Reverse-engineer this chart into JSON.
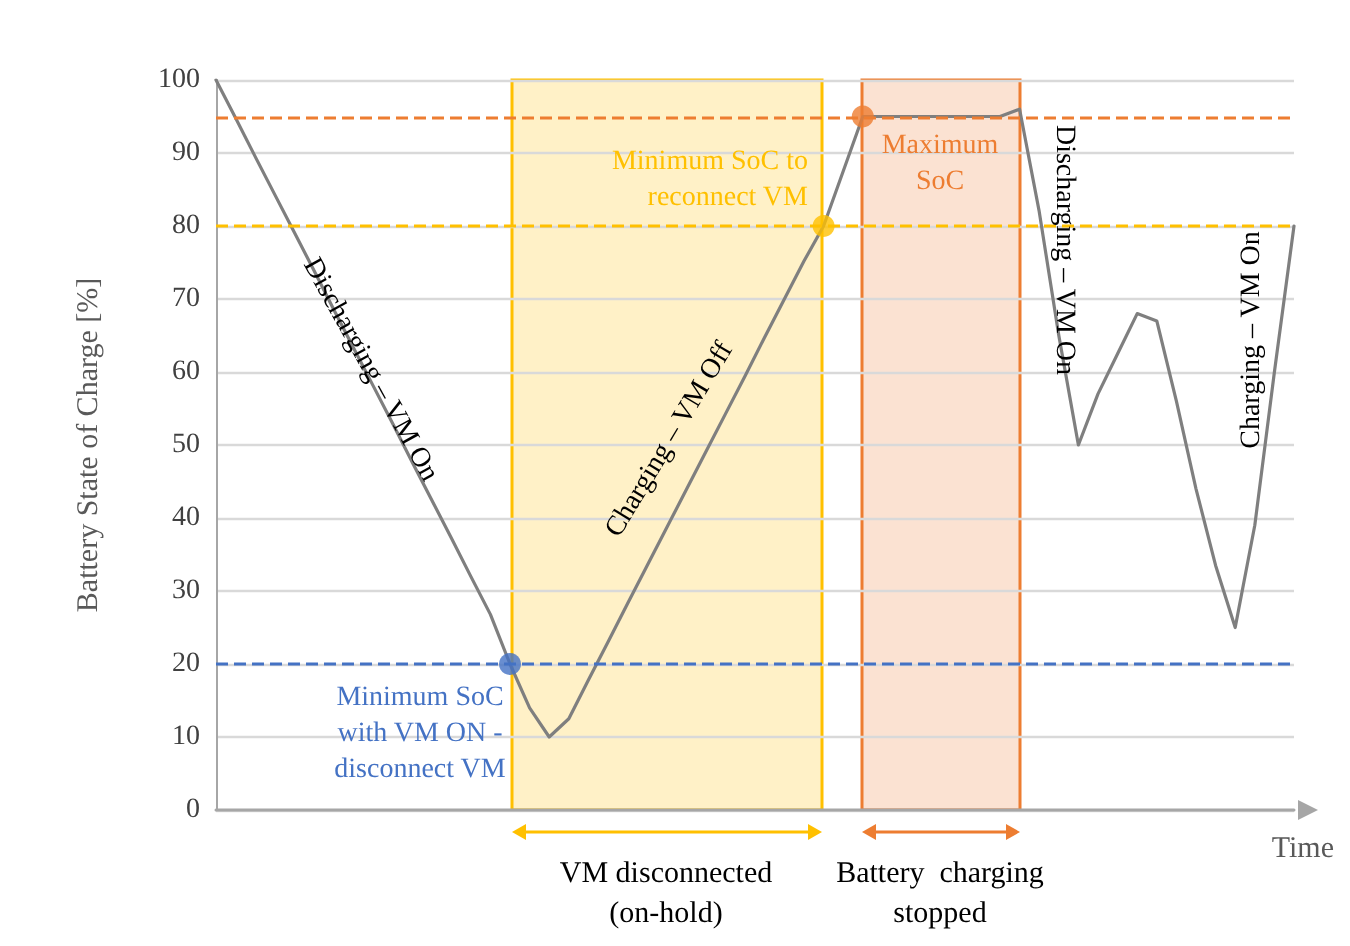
{
  "chart_data": {
    "type": "line",
    "xlabel": "Time",
    "ylabel": "Battery State of Charge [%]",
    "categories": [
      null,
      null,
      null,
      null,
      null,
      null,
      null,
      null,
      null,
      null,
      null,
      null,
      null,
      null,
      null,
      null,
      null,
      null,
      null,
      null,
      null,
      null,
      null,
      null,
      null,
      null,
      null,
      null,
      null,
      null,
      null,
      null,
      null,
      null,
      null,
      null,
      null,
      null,
      null,
      null,
      null,
      null,
      null,
      null,
      null,
      null,
      null,
      null,
      null,
      null,
      null,
      null,
      null,
      null,
      null,
      null
    ],
    "ylim": [
      0,
      100
    ],
    "yticks": [
      0,
      10,
      20,
      30,
      40,
      50,
      60,
      70,
      80,
      90,
      100
    ],
    "tick_labels": "y",
    "grid": "y",
    "series": [
      {
        "color": "#7f7f7f",
        "marker": "none",
        "line_style": "solid",
        "values": [
          100,
          94.8,
          89.5,
          84.3,
          79.1,
          73.9,
          68.6,
          63.4,
          58.2,
          53,
          47.7,
          42.5,
          37.3,
          32,
          26.8,
          20,
          14,
          10,
          12.5,
          17.8,
          23,
          28.3,
          33.5,
          38.7,
          43.9,
          49.1,
          54.3,
          59.5,
          64.8,
          70,
          75.2,
          80,
          87.5,
          95,
          95,
          95,
          95,
          95,
          95,
          95,
          95,
          96,
          82,
          65,
          50,
          57,
          62.5,
          68,
          67,
          56,
          44,
          33.5,
          25,
          39,
          60,
          80
        ]
      },
      {
        "type": "scatter",
        "marker": "circle",
        "values": [
          null,
          null,
          null,
          null,
          null,
          null,
          null,
          null,
          null,
          null,
          null,
          null,
          null,
          null,
          null,
          20,
          null,
          null,
          null,
          null,
          null,
          null,
          null,
          null,
          null,
          null,
          null,
          null,
          null,
          null,
          null,
          80,
          null,
          95,
          null,
          null,
          null,
          null,
          null,
          null,
          null,
          null,
          null,
          null,
          null,
          null,
          null,
          null,
          null,
          null,
          null,
          null,
          null,
          null,
          null,
          null
        ],
        "colors": [
          null,
          null,
          null,
          null,
          null,
          null,
          null,
          null,
          null,
          null,
          null,
          null,
          null,
          null,
          null,
          "#4472c4",
          null,
          null,
          null,
          null,
          null,
          null,
          null,
          null,
          null,
          null,
          null,
          null,
          null,
          null,
          null,
          "#ffc000",
          null,
          "#ed7d31",
          null,
          null,
          null,
          null,
          null,
          null,
          null,
          null,
          null,
          null,
          null,
          null,
          null,
          null,
          null,
          null,
          null,
          null,
          null,
          null,
          null,
          null
        ]
      }
    ],
    "ref_lines": [
      {
        "axis": "y",
        "value": 20,
        "color": "#4472c4",
        "line_style": "dashed"
      },
      {
        "axis": "y",
        "value": 80,
        "color": "#ffc000",
        "line_style": "dashed"
      },
      {
        "axis": "y",
        "value": 95,
        "color": "#ed7d31",
        "line_style": "dashed"
      }
    ],
    "annotations": [
      "Discharging – VM On",
      "Charging – VM Off",
      "Discharging – VM On",
      "Charging – VM On",
      "Minimum SoC\nwith VM ON -\ndisconnect VM",
      "Minimum SoC to\nreconnect VM",
      "Maximum\nSoC",
      "VM disconnected\n(on-hold)",
      "Battery  charging\nstopped"
    ]
  }
}
